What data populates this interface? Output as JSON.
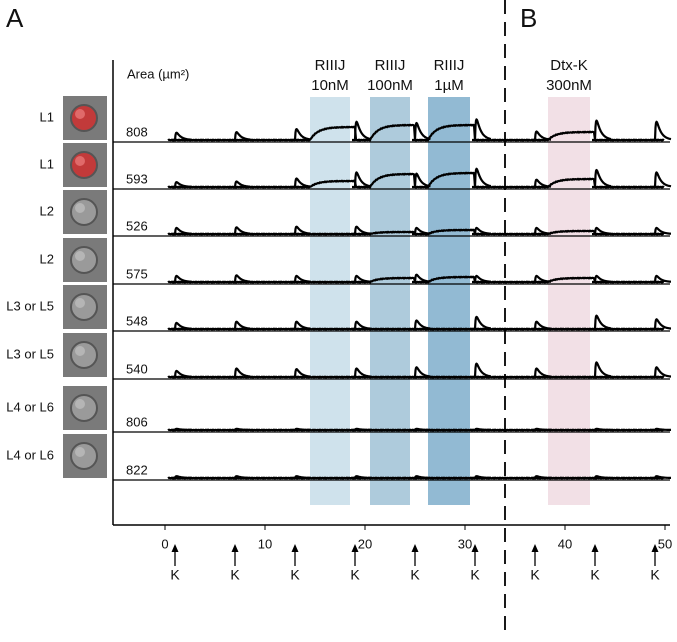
{
  "chart_data": {
    "type": "traces",
    "panels": [
      "A",
      "B"
    ],
    "area_label": "Area (µm²)",
    "xlim": [
      -5.2,
      50.5
    ],
    "xticks": [
      0,
      10,
      20,
      30,
      40,
      50
    ],
    "divider_x": 34,
    "stimulus": {
      "label": "K",
      "times": [
        1,
        7,
        13,
        19,
        25,
        31,
        37,
        43,
        49
      ]
    },
    "treatments": [
      {
        "lines": [
          "RIIIJ",
          "10nM"
        ],
        "start": 14.5,
        "end": 18.5,
        "color": "#cfe2ec"
      },
      {
        "lines": [
          "RIIIJ",
          "100nM"
        ],
        "start": 20.5,
        "end": 24.5,
        "color": "#aecbdc"
      },
      {
        "lines": [
          "RIIIJ",
          "1µM"
        ],
        "start": 26.3,
        "end": 30.5,
        "color": "#92bad3"
      },
      {
        "lines": [
          "Dtx-K",
          "300nM"
        ],
        "start": 38.3,
        "end": 42.5,
        "color": "#f2e0e6"
      }
    ],
    "rows": [
      {
        "label": "L1",
        "area": 808,
        "red": true,
        "peaks": [
          12,
          13,
          18,
          30,
          28,
          34,
          14,
          32,
          30
        ],
        "plateau": [
          13,
          15,
          15,
          8
        ]
      },
      {
        "label": "L1",
        "area": 593,
        "red": true,
        "peaks": [
          8,
          9,
          14,
          24,
          22,
          30,
          12,
          28,
          24
        ],
        "plateau": [
          6,
          13,
          14,
          8
        ]
      },
      {
        "label": "L2",
        "area": 526,
        "red": false,
        "peaks": [
          10,
          11,
          12,
          12,
          10,
          10,
          10,
          10,
          10
        ],
        "plateau": [
          0,
          2,
          4,
          3
        ]
      },
      {
        "label": "L2",
        "area": 575,
        "red": false,
        "peaks": [
          10,
          11,
          10,
          10,
          12,
          10,
          10,
          10,
          10
        ],
        "plateau": [
          0,
          4,
          5,
          4
        ]
      },
      {
        "label": "L3 or L5",
        "area": 548,
        "red": false,
        "peaks": [
          10,
          12,
          12,
          12,
          14,
          20,
          12,
          22,
          16
        ],
        "plateau": [
          0,
          0,
          0,
          0
        ]
      },
      {
        "label": "L3 or L5",
        "area": 540,
        "red": false,
        "peaks": [
          10,
          14,
          13,
          14,
          16,
          22,
          14,
          24,
          16
        ],
        "plateau": [
          0,
          0,
          0,
          0
        ]
      },
      {
        "label": "L4 or L6",
        "area": 806,
        "red": false,
        "peaks": [
          2,
          2,
          2,
          2,
          2,
          2,
          2,
          2,
          2
        ],
        "plateau": [
          0,
          0,
          0,
          0
        ]
      },
      {
        "label": "L4 or L6",
        "area": 822,
        "red": false,
        "peaks": [
          3,
          3,
          3,
          3,
          3,
          3,
          3,
          3,
          3
        ],
        "plateau": [
          0,
          0,
          0,
          0
        ]
      }
    ]
  }
}
